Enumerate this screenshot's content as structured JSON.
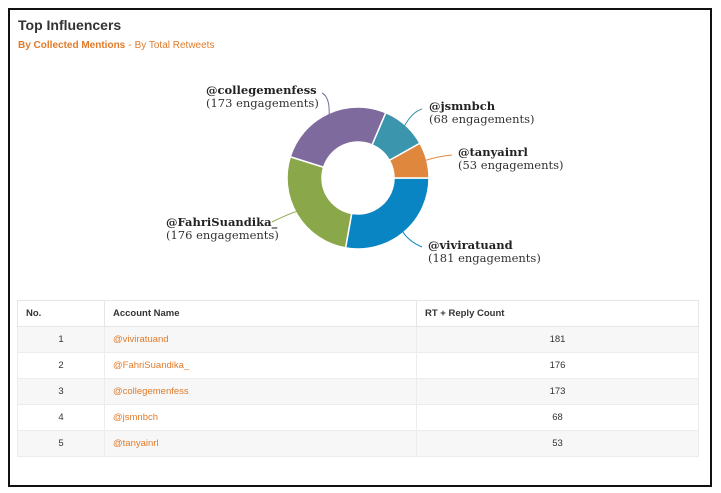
{
  "widget": {
    "title": "Top Influencers",
    "tab_active": "By Collected Mentions",
    "separator": "-",
    "tab_other": "By Total Retweets"
  },
  "chart_data": {
    "type": "pie",
    "donut": true,
    "slices": [
      {
        "name": "@viviratuand",
        "value": 181,
        "label": "181 engagements",
        "color": "#0a85c4"
      },
      {
        "name": "@FahriSuandika_",
        "value": 176,
        "label": "176 engagements",
        "color": "#8aa74a"
      },
      {
        "name": "@collegemenfess",
        "value": 173,
        "label": "173 engagements",
        "color": "#7f6a9e"
      },
      {
        "name": "@jsmnbch",
        "value": 68,
        "label": "68 engagements",
        "color": "#3a95ad"
      },
      {
        "name": "@tanyainrl",
        "value": 53,
        "label": "53 engagements",
        "color": "#e0873e"
      }
    ]
  },
  "table": {
    "headers": [
      "No.",
      "Account Name",
      "RT + Reply Count"
    ],
    "rows": [
      {
        "no": "1",
        "account": "@viviratuand",
        "count": "181"
      },
      {
        "no": "2",
        "account": "@FahriSuandika_",
        "count": "176"
      },
      {
        "no": "3",
        "account": "@collegemenfess",
        "count": "173"
      },
      {
        "no": "4",
        "account": "@jsmnbch",
        "count": "68"
      },
      {
        "no": "5",
        "account": "@tanyainrl",
        "count": "53"
      }
    ]
  }
}
